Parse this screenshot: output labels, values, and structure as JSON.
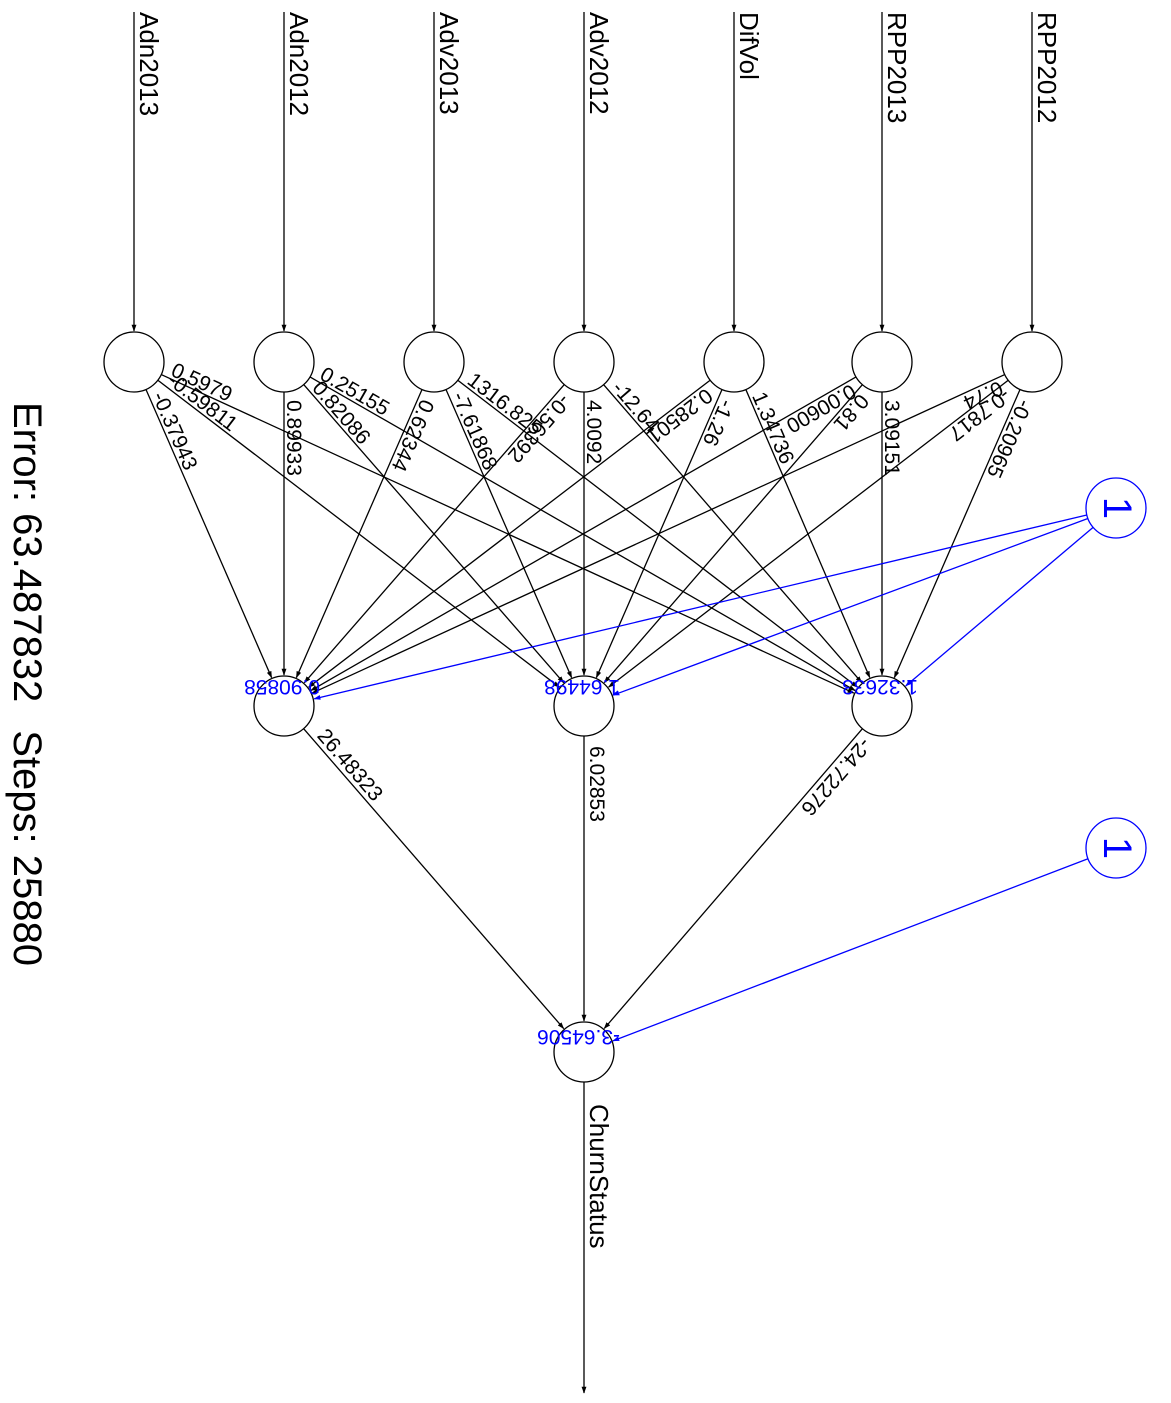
{
  "colors": {
    "line": "#000000",
    "bias": "#0000ff",
    "background": "#ffffff"
  },
  "inputs": [
    "Adn2013",
    "Adn2012",
    "Adv2013",
    "Adv2012",
    "DifVol",
    "RPP2013",
    "RPP2012"
  ],
  "output": "ChurnStatus",
  "bias_label": "1",
  "weights": {
    "input_to_hidden": [
      {
        "from": 0,
        "to": 0,
        "value": "-0.37943"
      },
      {
        "from": 0,
        "to": 1,
        "value": "-0.59811"
      },
      {
        "from": 0,
        "to": 2,
        "value": "0.5979"
      },
      {
        "from": 1,
        "to": 0,
        "value": "0.89933"
      },
      {
        "from": 1,
        "to": 1,
        "value": "0.82086"
      },
      {
        "from": 1,
        "to": 2,
        "value": "0.25155"
      },
      {
        "from": 2,
        "to": 0,
        "value": "0.62344"
      },
      {
        "from": 2,
        "to": 1,
        "value": "-7.61868"
      },
      {
        "from": 2,
        "to": 2,
        "value": "1316.825"
      },
      {
        "from": 3,
        "to": 0,
        "value": "-0.56392"
      },
      {
        "from": 3,
        "to": 1,
        "value": "4.0092"
      },
      {
        "from": 3,
        "to": 2,
        "value": "-12.64"
      },
      {
        "from": 4,
        "to": 0,
        "value": "0.28501"
      },
      {
        "from": 4,
        "to": 1,
        "value": "-1.26"
      },
      {
        "from": 4,
        "to": 2,
        "value": "1.34736"
      },
      {
        "from": 5,
        "to": 0,
        "value": "0.00600"
      },
      {
        "from": 5,
        "to": 1,
        "value": "0.81"
      },
      {
        "from": 5,
        "to": 2,
        "value": "3.09151"
      },
      {
        "from": 6,
        "to": 0,
        "value": "0.74"
      },
      {
        "from": 6,
        "to": 1,
        "value": "-0.7817"
      },
      {
        "from": 6,
        "to": 2,
        "value": "-0.20965"
      }
    ],
    "hidden_bias": [
      "0.90858",
      "1.64498",
      "1.32633"
    ],
    "hidden_to_output": [
      "26.48323",
      "6.02853",
      "-24.72276"
    ],
    "output_bias": "-3.64506"
  },
  "footer": {
    "error_label": "Error: 63.487832",
    "steps_label": "Steps: 25880"
  }
}
